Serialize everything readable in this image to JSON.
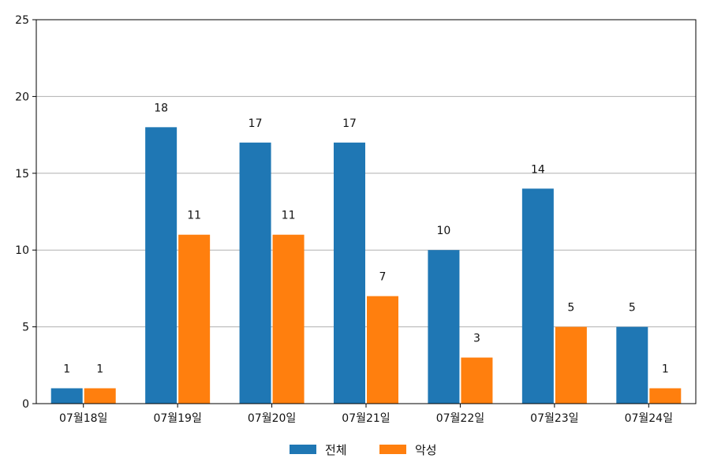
{
  "chart_data": {
    "type": "bar",
    "categories": [
      "07월18일",
      "07월19일",
      "07월20일",
      "07월21일",
      "07월22일",
      "07월23일",
      "07월24일"
    ],
    "series": [
      {
        "name": "전체",
        "color": "#1f77b4",
        "values": [
          1,
          18,
          17,
          17,
          10,
          14,
          5
        ]
      },
      {
        "name": "악성",
        "color": "#ff7f0e",
        "values": [
          1,
          11,
          11,
          7,
          3,
          5,
          1
        ]
      }
    ],
    "ylim": [
      0,
      25
    ],
    "yticks": [
      0,
      5,
      10,
      15,
      20,
      25
    ],
    "grid": "horizontal",
    "legend": "bottom-center",
    "data_labels": true
  }
}
